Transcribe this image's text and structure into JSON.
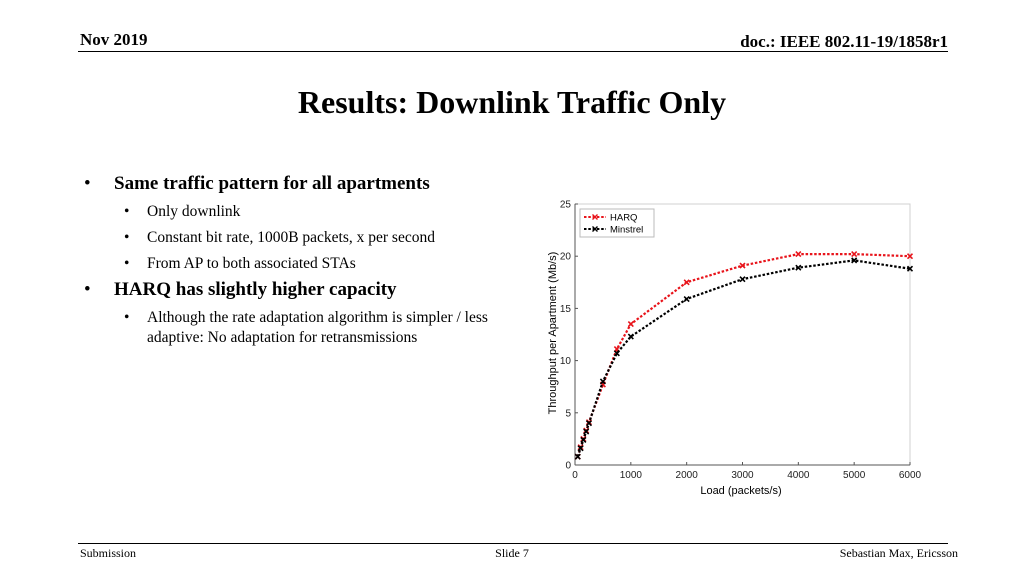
{
  "header": {
    "date": "Nov 2019",
    "doc": "doc.: IEEE 802.11-19/1858r1"
  },
  "title": "Results: Downlink Traffic Only",
  "bullets": [
    {
      "text": "Same traffic pattern for all apartments",
      "sub": [
        "Only downlink",
        "Constant bit rate, 1000B packets, x per second",
        "From AP to both associated STAs"
      ]
    },
    {
      "text": "HARQ has slightly higher capacity",
      "sub": [
        "Although the rate adaptation algorithm is simpler / less adaptive: No adaptation for retransmissions"
      ]
    }
  ],
  "chart_data": {
    "type": "line",
    "xlabel": "Load (packets/s)",
    "ylabel": "Throughput per Apartment (Mb/s)",
    "xlim": [
      0,
      6000
    ],
    "ylim": [
      0,
      25
    ],
    "xticks": [
      0,
      1000,
      2000,
      3000,
      4000,
      5000,
      6000
    ],
    "yticks": [
      0,
      5,
      10,
      15,
      20,
      25
    ],
    "legend_position": "top-left",
    "series": [
      {
        "name": "HARQ",
        "color": "#e8141b",
        "x": [
          50,
          100,
          150,
          200,
          250,
          500,
          750,
          1000,
          2000,
          3000,
          4000,
          5000,
          6000
        ],
        "y": [
          0.8,
          1.7,
          2.5,
          3.3,
          4.1,
          7.7,
          11.1,
          13.5,
          17.5,
          19.1,
          20.2,
          20.2,
          20.0
        ]
      },
      {
        "name": "Minstrel",
        "color": "#000000",
        "x": [
          50,
          100,
          150,
          200,
          250,
          500,
          750,
          1000,
          2000,
          3000,
          4000,
          5000,
          6000
        ],
        "y": [
          0.8,
          1.6,
          2.4,
          3.2,
          4.0,
          8.0,
          10.7,
          12.3,
          15.9,
          17.8,
          18.9,
          19.6,
          18.8
        ]
      }
    ]
  },
  "footer": {
    "left": "Submission",
    "center": "Slide 7",
    "right": "Sebastian Max, Ericsson"
  }
}
